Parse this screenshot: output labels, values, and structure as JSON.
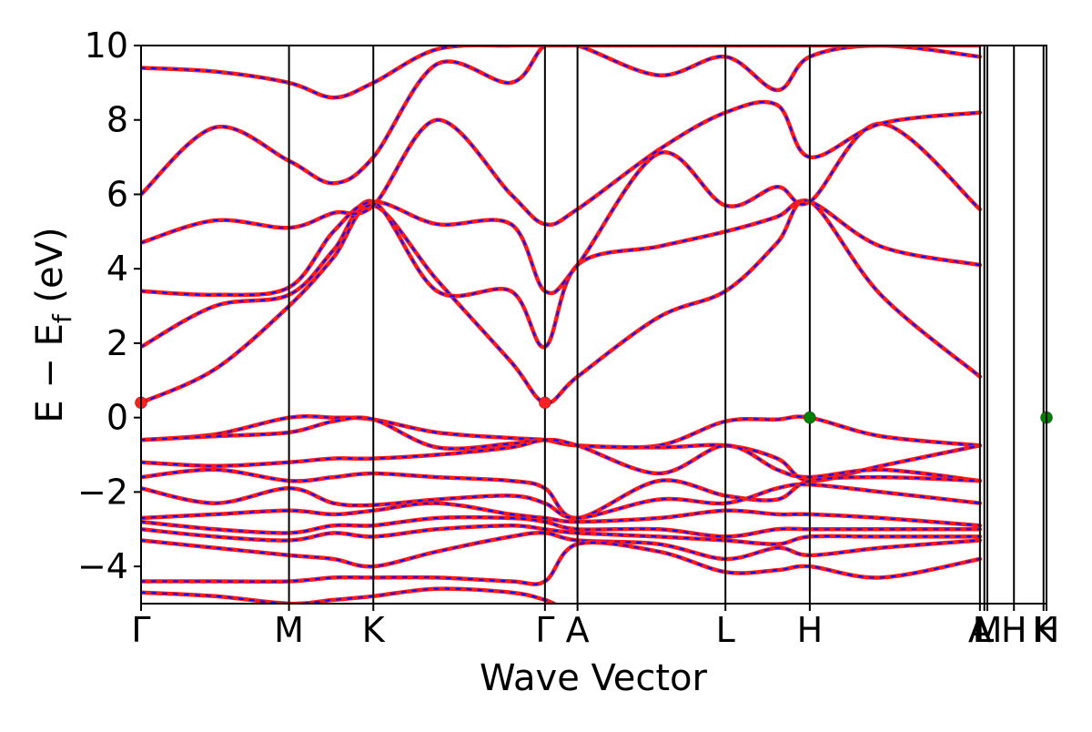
{
  "chart_data": {
    "type": "line",
    "title": "",
    "xlabel": "Wave Vector",
    "ylabel_main": "E − E",
    "ylabel_sub": "f",
    "ylabel_unit": " (eV)",
    "ylim": [
      -5,
      10
    ],
    "yticks": [
      -4,
      -2,
      0,
      2,
      4,
      6,
      8,
      10
    ],
    "ytick_labels": [
      "−4",
      "−2",
      "0",
      "2",
      "4",
      "6",
      "8",
      "10"
    ],
    "xlim": [
      0,
      6.12
    ],
    "kpoints": [
      {
        "label": "Γ",
        "x": 0.0
      },
      {
        "label": "M",
        "x": 1.0
      },
      {
        "label": "K",
        "x": 1.57
      },
      {
        "label": "Γ",
        "x": 2.73
      },
      {
        "label": "A",
        "x": 2.95
      },
      {
        "label": "L",
        "x": 3.95
      },
      {
        "label": "H",
        "x": 4.52
      },
      {
        "label": "A",
        "x": 5.67
      },
      {
        "label": "L",
        "x": 5.7
      },
      {
        "label": "M",
        "x": 5.72
      },
      {
        "label": "H",
        "x": 5.9
      },
      {
        "label": "K",
        "x": 6.1
      },
      {
        "label": "H",
        "x": 6.12
      }
    ],
    "bands": [
      {
        "x": [
          0,
          0.5,
          1.0,
          1.3,
          1.57,
          2.0,
          2.5,
          2.73,
          2.95,
          3.5,
          3.95,
          4.3,
          4.52,
          5.0,
          5.67
        ],
        "y": [
          0.4,
          1.3,
          3.0,
          4.3,
          5.7,
          3.7,
          1.5,
          0.4,
          1.1,
          2.7,
          3.4,
          4.7,
          5.8,
          3.3,
          1.1
        ]
      },
      {
        "x": [
          0,
          0.5,
          1.0,
          1.3,
          1.57,
          2.0,
          2.5,
          2.73,
          2.95,
          3.5,
          3.95,
          4.3,
          4.52,
          5.0,
          5.67
        ],
        "y": [
          1.9,
          3.0,
          3.3,
          4.5,
          5.8,
          3.4,
          3.4,
          1.9,
          4.1,
          4.6,
          5.0,
          5.4,
          5.8,
          4.6,
          4.1
        ]
      },
      {
        "x": [
          0,
          0.5,
          1.0,
          1.3,
          1.57,
          2.0,
          2.5,
          2.73,
          2.95,
          3.5,
          3.95,
          4.3,
          4.52,
          5.0,
          5.67
        ],
        "y": [
          3.4,
          3.3,
          3.5,
          5.0,
          5.8,
          5.2,
          5.2,
          3.4,
          4.1,
          7.1,
          5.7,
          6.2,
          5.8,
          7.9,
          5.6
        ]
      },
      {
        "x": [
          0,
          0.5,
          1.0,
          1.3,
          1.57,
          2.0,
          2.5,
          2.73,
          2.95,
          3.5,
          3.95,
          4.3,
          4.52,
          5.0,
          5.67
        ],
        "y": [
          4.7,
          5.3,
          5.1,
          5.5,
          5.7,
          8.0,
          6.0,
          5.2,
          5.6,
          7.2,
          8.2,
          8.4,
          7.0,
          7.9,
          8.2
        ]
      },
      {
        "x": [
          0,
          0.5,
          1.0,
          1.3,
          1.57,
          2.0,
          2.5,
          2.73,
          2.95,
          3.5,
          3.95,
          4.3,
          4.52,
          5.0,
          5.67
        ],
        "y": [
          6.0,
          7.8,
          6.9,
          6.3,
          7.0,
          9.5,
          9.0,
          10.0,
          10.0,
          9.2,
          9.7,
          8.8,
          9.7,
          10.0,
          9.7
        ]
      },
      {
        "x": [
          0,
          0.5,
          1.0,
          1.3,
          1.57,
          2.0,
          2.5,
          2.73,
          2.95,
          3.5,
          3.95,
          4.3,
          4.52,
          5.0,
          5.67
        ],
        "y": [
          9.4,
          9.3,
          9.0,
          8.6,
          9.0,
          9.9,
          10.0,
          10.0,
          10.0,
          10.0,
          10.0,
          10.0,
          10.0,
          10.0,
          10.0
        ]
      },
      {
        "x": [
          0,
          0.5,
          1.0,
          1.3,
          1.57,
          2.0,
          2.5,
          2.73,
          2.95,
          3.5,
          3.95,
          4.3,
          4.52,
          5.0,
          5.67
        ],
        "y": [
          -0.6,
          -0.45,
          0.0,
          0.0,
          -0.05,
          -0.4,
          -0.55,
          -0.6,
          -0.75,
          -0.75,
          -0.1,
          -0.05,
          0.0,
          -0.5,
          -0.75
        ]
      },
      {
        "x": [
          0,
          0.5,
          1.0,
          1.3,
          1.57,
          2.0,
          2.5,
          2.73,
          2.95,
          3.5,
          3.95,
          4.3,
          4.52,
          5.0,
          5.67
        ],
        "y": [
          -0.6,
          -0.5,
          -0.4,
          -0.1,
          -0.05,
          -0.8,
          -0.7,
          -0.6,
          -0.75,
          -0.8,
          -0.75,
          -1.1,
          -1.7,
          -1.3,
          -0.75
        ]
      },
      {
        "x": [
          0,
          0.5,
          1.0,
          1.3,
          1.57,
          2.0,
          2.5,
          2.73,
          2.95,
          3.5,
          3.95,
          4.3,
          4.52,
          5.0,
          5.67
        ],
        "y": [
          -1.2,
          -1.3,
          -1.2,
          -1.1,
          -1.1,
          -1.0,
          -0.8,
          -0.6,
          -0.75,
          -1.5,
          -0.75,
          -1.4,
          -1.6,
          -1.4,
          -1.7
        ]
      },
      {
        "x": [
          0,
          0.5,
          1.0,
          1.3,
          1.57,
          2.0,
          2.5,
          2.73,
          2.95,
          3.5,
          3.95,
          4.3,
          4.52,
          5.0,
          5.67
        ],
        "y": [
          -1.6,
          -1.4,
          -1.7,
          -1.6,
          -1.5,
          -1.6,
          -1.7,
          -1.9,
          -2.7,
          -1.7,
          -2.1,
          -2.2,
          -1.7,
          -1.6,
          -1.7
        ]
      },
      {
        "x": [
          0,
          0.5,
          1.0,
          1.3,
          1.57,
          2.0,
          2.5,
          2.73,
          2.95,
          3.5,
          3.95,
          4.3,
          4.52,
          5.0,
          5.67
        ],
        "y": [
          -1.9,
          -2.3,
          -1.9,
          -2.3,
          -2.35,
          -2.2,
          -2.1,
          -2.3,
          -2.7,
          -2.2,
          -2.3,
          -1.9,
          -1.8,
          -2.0,
          -2.3
        ]
      },
      {
        "x": [
          0,
          0.5,
          1.0,
          1.3,
          1.57,
          2.0,
          2.5,
          2.73,
          2.95,
          3.5,
          3.95,
          4.3,
          4.52,
          5.0,
          5.67
        ],
        "y": [
          -2.7,
          -2.6,
          -2.5,
          -2.6,
          -2.5,
          -2.3,
          -2.6,
          -2.7,
          -2.8,
          -2.7,
          -2.5,
          -2.6,
          -2.6,
          -2.7,
          -2.9
        ]
      },
      {
        "x": [
          0,
          0.5,
          1.0,
          1.3,
          1.57,
          2.0,
          2.5,
          2.73,
          2.95,
          3.5,
          3.95,
          4.3,
          4.52,
          5.0,
          5.67
        ],
        "y": [
          -2.8,
          -3.0,
          -3.1,
          -2.9,
          -2.9,
          -2.7,
          -2.7,
          -2.8,
          -3.0,
          -3.0,
          -3.2,
          -3.0,
          -3.0,
          -3.0,
          -3.0
        ]
      },
      {
        "x": [
          0,
          0.5,
          1.0,
          1.3,
          1.57,
          2.0,
          2.5,
          2.73,
          2.95,
          3.5,
          3.95,
          4.3,
          4.52,
          5.0,
          5.67
        ],
        "y": [
          -3.0,
          -3.2,
          -3.3,
          -3.1,
          -3.2,
          -3.0,
          -2.9,
          -3.0,
          -3.1,
          -3.2,
          -3.3,
          -3.4,
          -3.2,
          -3.2,
          -3.2
        ]
      },
      {
        "x": [
          0,
          0.5,
          1.0,
          1.3,
          1.57,
          2.0,
          2.5,
          2.73,
          2.95,
          3.5,
          3.95,
          4.3,
          4.52,
          5.0,
          5.67
        ],
        "y": [
          -3.3,
          -3.5,
          -3.7,
          -3.8,
          -4.0,
          -3.6,
          -3.2,
          -3.1,
          -3.3,
          -3.4,
          -3.8,
          -3.5,
          -3.7,
          -3.5,
          -3.3
        ]
      },
      {
        "x": [
          0,
          0.5,
          1.0,
          1.3,
          1.57,
          2.0,
          2.5,
          2.73,
          2.95,
          3.5,
          3.95,
          4.3,
          4.52,
          5.0,
          5.67
        ],
        "y": [
          -4.4,
          -4.4,
          -4.4,
          -4.3,
          -4.3,
          -4.3,
          -4.4,
          -4.4,
          -3.4,
          -3.6,
          -4.15,
          -4.1,
          -4.0,
          -4.3,
          -3.8
        ]
      },
      {
        "x": [
          0,
          0.5,
          1.0,
          1.3,
          1.57,
          2.0,
          2.5,
          2.73,
          2.95,
          3.5,
          3.95,
          4.3,
          4.52,
          5.0,
          5.67
        ],
        "y": [
          -4.7,
          -4.8,
          -5.0,
          -4.9,
          -4.8,
          -4.6,
          -4.7,
          -4.9,
          -5.2,
          -5.2,
          -5.2,
          -5.1,
          -5.1,
          -5.2,
          -5.2
        ]
      }
    ],
    "markers": [
      {
        "x": 0.0,
        "y": 0.4,
        "color": "#ff2020"
      },
      {
        "x": 2.73,
        "y": 0.4,
        "color": "#ff2020"
      },
      {
        "x": 4.52,
        "y": 0.0,
        "color": "#008000"
      },
      {
        "x": 6.12,
        "y": 0.0,
        "color": "#008000"
      }
    ]
  }
}
